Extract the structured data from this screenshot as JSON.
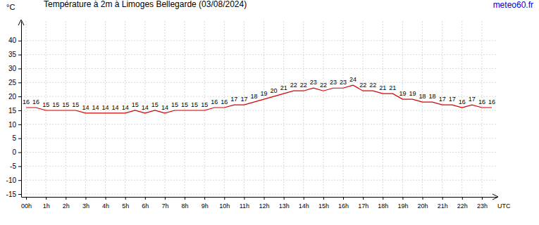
{
  "chart_data": {
    "type": "line",
    "title": "Température à 2m à Limoges Bellegarde (03/08/2024)",
    "annotations": [
      "meteo60.fr"
    ],
    "x_label": "UTC",
    "y_label": "°C",
    "x": [
      0,
      0.5,
      1,
      1.5,
      2,
      2.5,
      3,
      3.5,
      4,
      4.5,
      5,
      5.5,
      6,
      6.5,
      7,
      7.5,
      8,
      8.5,
      9,
      9.5,
      10,
      10.5,
      11,
      11.5,
      12,
      12.5,
      13,
      13.5,
      14,
      14.5,
      15,
      15.5,
      16,
      16.5,
      17,
      17.5,
      18,
      18.5,
      19,
      19.5,
      20,
      20.5,
      21,
      21.5,
      22,
      22.5,
      23,
      23.5
    ],
    "values": [
      16,
      16,
      15,
      15,
      15,
      15,
      14,
      14,
      14,
      14,
      14,
      15,
      14,
      15,
      14,
      15,
      15,
      15,
      15,
      16,
      16,
      17,
      17,
      18,
      19,
      20,
      21,
      22,
      22,
      23,
      22,
      23,
      23,
      24,
      22,
      22,
      21,
      21,
      19,
      19,
      18,
      18,
      17,
      17,
      16,
      17,
      16,
      16
    ],
    "color": "#d40000",
    "data_labels": true,
    "grid": true,
    "xlim": [
      -0.25,
      23.75
    ],
    "xticks": [
      {
        "value": 0,
        "label": "00h"
      },
      {
        "value": 1,
        "label": "1h"
      },
      {
        "value": 2,
        "label": "2h"
      },
      {
        "value": 3,
        "label": "3h"
      },
      {
        "value": 4,
        "label": "4h"
      },
      {
        "value": 5,
        "label": "5h"
      },
      {
        "value": 6,
        "label": "6h"
      },
      {
        "value": 7,
        "label": "7h"
      },
      {
        "value": 8,
        "label": "8h"
      },
      {
        "value": 9,
        "label": "9h"
      },
      {
        "value": 10,
        "label": "10h"
      },
      {
        "value": 11,
        "label": "11h"
      },
      {
        "value": 12,
        "label": "12h"
      },
      {
        "value": 13,
        "label": "13h"
      },
      {
        "value": 14,
        "label": "14h"
      },
      {
        "value": 15,
        "label": "15h"
      },
      {
        "value": 16,
        "label": "16h"
      },
      {
        "value": 17,
        "label": "17h"
      },
      {
        "value": 18,
        "label": "18h"
      },
      {
        "value": 19,
        "label": "19h"
      },
      {
        "value": 20,
        "label": "20h"
      },
      {
        "value": 21,
        "label": "21h"
      },
      {
        "value": 22,
        "label": "22h"
      },
      {
        "value": 23,
        "label": "23h"
      }
    ],
    "ylim": [
      -16,
      47
    ],
    "yticks": [
      -15,
      -10,
      -5,
      0,
      5,
      10,
      15,
      20,
      25,
      30,
      35,
      40
    ]
  }
}
